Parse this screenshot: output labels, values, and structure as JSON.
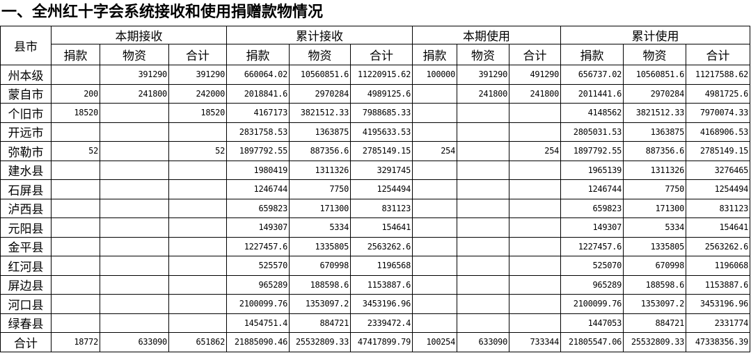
{
  "header": {
    "title": "一、全州红十字会系统接收和使用捐赠款物情况"
  },
  "table": {
    "corner": "县市",
    "groups": [
      "本期接收",
      "累计接收",
      "本期使用",
      "累计使用"
    ],
    "subheaders": [
      "捐款",
      "物资",
      "合计",
      "捐款",
      "物资",
      "合计",
      "捐款",
      "物资",
      "合计",
      "捐款",
      "物资",
      "合计"
    ],
    "rows": [
      [
        "州本级",
        null,
        "391290",
        "391290",
        "660064.02",
        "10560851.6",
        "11220915.62",
        "100000",
        "391290",
        "491290",
        "656737.02",
        "10560851.6",
        "11217588.62"
      ],
      [
        "蒙自市",
        "200",
        "241800",
        "242000",
        "2018841.6",
        "2970284",
        "4989125.6",
        null,
        "241800",
        "241800",
        "2011441.6",
        "2970284",
        "4981725.6"
      ],
      [
        "个旧市",
        "18520",
        null,
        "18520",
        "4167173",
        "3821512.33",
        "7988685.33",
        null,
        null,
        null,
        "4148562",
        "3821512.33",
        "7970074.33"
      ],
      [
        "开远市",
        null,
        null,
        null,
        "2831758.53",
        "1363875",
        "4195633.53",
        null,
        null,
        null,
        "2805031.53",
        "1363875",
        "4168906.53"
      ],
      [
        "弥勒市",
        "52",
        null,
        "52",
        "1897792.55",
        "887356.6",
        "2785149.15",
        "254",
        null,
        "254",
        "1897792.55",
        "887356.6",
        "2785149.15"
      ],
      [
        "建水县",
        null,
        null,
        null,
        "1980419",
        "1311326",
        "3291745",
        null,
        null,
        null,
        "1965139",
        "1311326",
        "3276465"
      ],
      [
        "石屏县",
        null,
        null,
        null,
        "1246744",
        "7750",
        "1254494",
        null,
        null,
        null,
        "1246744",
        "7750",
        "1254494"
      ],
      [
        "泸西县",
        null,
        null,
        null,
        "659823",
        "171300",
        "831123",
        null,
        null,
        null,
        "659823",
        "171300",
        "831123"
      ],
      [
        "元阳县",
        null,
        null,
        null,
        "149307",
        "5334",
        "154641",
        null,
        null,
        null,
        "149307",
        "5334",
        "154641"
      ],
      [
        "金平县",
        null,
        null,
        null,
        "1227457.6",
        "1335805",
        "2563262.6",
        null,
        null,
        null,
        "1227457.6",
        "1335805",
        "2563262.6"
      ],
      [
        "红河县",
        null,
        null,
        null,
        "525570",
        "670998",
        "1196568",
        null,
        null,
        null,
        "525070",
        "670998",
        "1196068"
      ],
      [
        "屏边县",
        null,
        null,
        null,
        "965289",
        "188598.6",
        "1153887.6",
        null,
        null,
        null,
        "965289",
        "188598.6",
        "1153887.6"
      ],
      [
        "河口县",
        null,
        null,
        null,
        "2100099.76",
        "1353097.2",
        "3453196.96",
        null,
        null,
        null,
        "2100099.76",
        "1353097.2",
        "3453196.96"
      ],
      [
        "绿春县",
        null,
        null,
        null,
        "1454751.4",
        "884721",
        "2339472.4",
        null,
        null,
        null,
        "1447053",
        "884721",
        "2331774"
      ],
      [
        "合计",
        "18772",
        "633090",
        "651862",
        "21885090.46",
        "25532809.33",
        "47417899.79",
        "100254",
        "633090",
        "733344",
        "21805547.06",
        "25532809.33",
        "47338356.39"
      ]
    ]
  }
}
